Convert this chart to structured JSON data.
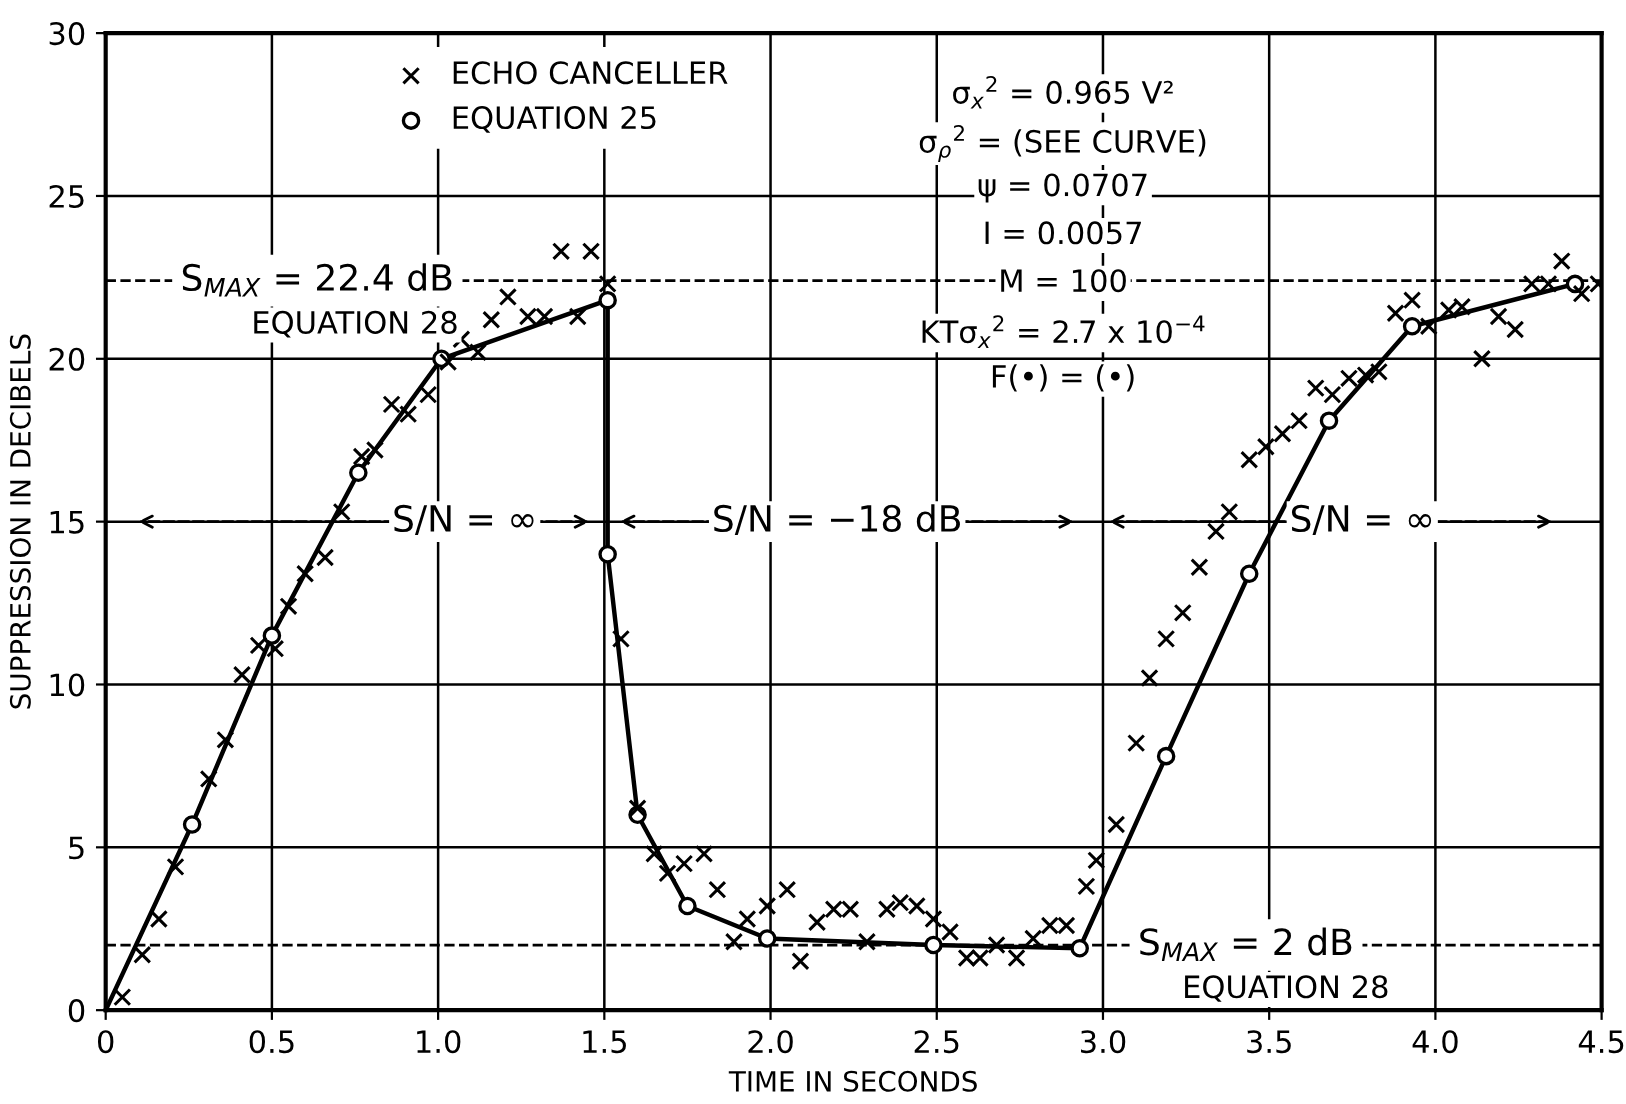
{
  "chart_data": {
    "type": "scatter",
    "xlabel": "TIME IN SECONDS",
    "ylabel": "SUPPRESSION IN DECIBELS",
    "xlim": [
      0,
      4.5
    ],
    "ylim": [
      0,
      30
    ],
    "xticks": [
      0,
      0.5,
      {
        "value": 1.0,
        "label": "1.0"
      },
      1.5,
      {
        "value": 2.0,
        "label": "2.0"
      },
      2.5,
      {
        "value": 3.0,
        "label": "3.0"
      },
      3.5,
      {
        "value": 4.0,
        "label": "4.0"
      },
      4.5
    ],
    "yticks": [
      0,
      5,
      10,
      15,
      20,
      25,
      30
    ],
    "grid": true,
    "legend": "top",
    "series": [
      {
        "type": "line",
        "color": "#000000",
        "marker": "none",
        "line_style": "solid",
        "x": [
          0,
          0.26,
          0.5,
          0.76,
          1.01,
          1.51,
          1.51,
          1.6,
          1.75,
          1.99,
          2.49,
          2.93,
          3.19,
          3.44,
          3.68,
          3.93,
          4.42
        ],
        "values": [
          0,
          5.7,
          11.5,
          16.5,
          20.0,
          21.8,
          14.0,
          6.0,
          3.2,
          2.2,
          2.0,
          1.9,
          7.8,
          13.4,
          18.1,
          21.0,
          22.3
        ]
      },
      {
        "name": "ECHO CANCELLER",
        "type": "scatter",
        "color": "#000000",
        "marker": "cross",
        "x": [
          0.05,
          0.11,
          0.16,
          0.21,
          0.31,
          0.36,
          0.41,
          0.46,
          0.51,
          0.55,
          0.6,
          0.66,
          0.71,
          0.77,
          0.81,
          0.86,
          0.91,
          0.97,
          1.03,
          1.07,
          1.12,
          1.16,
          1.21,
          1.27,
          1.32,
          1.37,
          1.42,
          1.46,
          1.51,
          1.55,
          1.6,
          1.65,
          1.69,
          1.74,
          1.8,
          1.84,
          1.89,
          1.93,
          1.99,
          2.05,
          2.09,
          2.14,
          2.19,
          2.24,
          2.29,
          2.35,
          2.39,
          2.44,
          2.49,
          2.54,
          2.59,
          2.63,
          2.68,
          2.74,
          2.79,
          2.84,
          2.89,
          2.95,
          2.98,
          3.04,
          3.1,
          3.14,
          3.19,
          3.24,
          3.29,
          3.34,
          3.38,
          3.44,
          3.49,
          3.54,
          3.59,
          3.64,
          3.69,
          3.74,
          3.79,
          3.83,
          3.88,
          3.93,
          3.98,
          4.04,
          4.08,
          4.14,
          4.19,
          4.24,
          4.29,
          4.34,
          4.38,
          4.44,
          4.49
        ],
        "values": [
          0.4,
          1.7,
          2.8,
          4.4,
          7.1,
          8.3,
          10.3,
          11.2,
          11.1,
          12.4,
          13.4,
          13.9,
          15.3,
          17.0,
          17.2,
          18.6,
          18.3,
          18.9,
          19.9,
          20.6,
          20.2,
          21.2,
          21.9,
          21.3,
          21.3,
          23.3,
          21.3,
          23.3,
          22.3,
          11.4,
          6.2,
          4.8,
          4.2,
          4.5,
          4.8,
          3.7,
          2.1,
          2.8,
          3.2,
          3.7,
          1.5,
          2.7,
          3.1,
          3.1,
          2.1,
          3.1,
          3.3,
          3.2,
          2.8,
          2.4,
          1.6,
          1.6,
          2.0,
          1.6,
          2.2,
          2.6,
          2.6,
          3.8,
          4.6,
          5.7,
          8.2,
          10.2,
          11.4,
          12.2,
          13.6,
          14.7,
          15.3,
          16.9,
          17.3,
          17.7,
          18.1,
          19.1,
          18.9,
          19.4,
          19.5,
          19.6,
          21.4,
          21.8,
          21.0,
          21.5,
          21.6,
          20.0,
          21.3,
          20.9,
          22.3,
          22.3,
          23.0,
          22.0,
          22.3
        ]
      },
      {
        "name": "EQUATION 25",
        "type": "scatter",
        "color": "#000000",
        "marker": "circle",
        "x": [
          0.26,
          0.5,
          0.76,
          1.01,
          1.51,
          1.51,
          1.6,
          1.75,
          1.99,
          2.49,
          2.93,
          3.19,
          3.44,
          3.68,
          3.93,
          4.42
        ],
        "values": [
          5.7,
          11.5,
          16.5,
          20.0,
          21.8,
          14.0,
          6.0,
          3.2,
          2.2,
          2.0,
          1.9,
          7.8,
          13.4,
          18.1,
          21.0,
          22.3
        ]
      }
    ],
    "ref_lines": [
      {
        "axis": "y",
        "value": 22.4,
        "label": "S$_{MAX}$ = 22.4 dB",
        "color": "#000000",
        "line_style": "dashed"
      },
      {
        "axis": "y",
        "value": 2,
        "label": "S$_{MAX}$ = 2 dB",
        "color": "#000000",
        "line_style": "dashed"
      }
    ],
    "annotations": [
      {
        "text": "EQUATION 28",
        "x": 0.75,
        "y": 22.4
      },
      {
        "text": "EQUATION 28",
        "x": 3.55,
        "y": 2
      },
      "S/N = ∞",
      "S/N = −18 dB",
      "S/N = ∞",
      "σ$_{x}$$^{2}$ = 0.965 V²",
      "σ$_{ρ}$$^{2}$ = (SEE CURVE)",
      "ψ = 0.0707",
      "I = 0.0057",
      "M = 100",
      "KTσ$_{x}$$^{2}$ = 2.7 x 10$^{−4}$",
      "F(•) = (•)"
    ]
  }
}
